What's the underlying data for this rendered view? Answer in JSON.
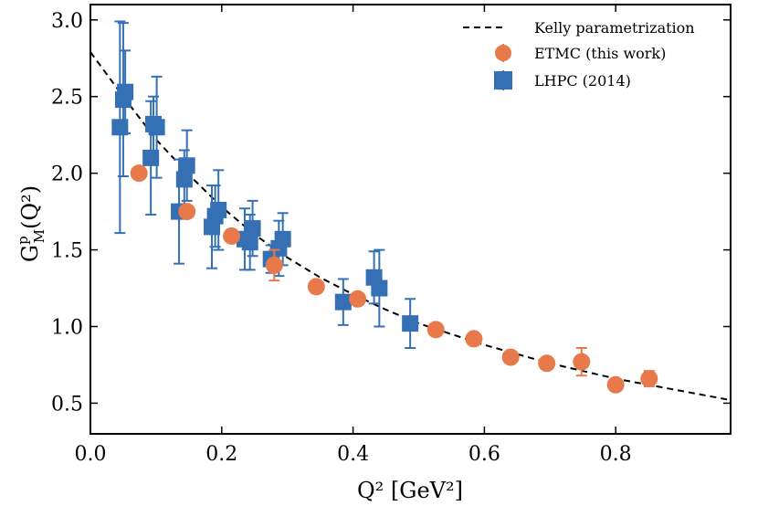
{
  "chart_data": {
    "type": "scatter",
    "title": "",
    "xlabel": "Q² [GeV²]",
    "ylabel": "G",
    "ylabel_sup": "p",
    "ylabel_sub": "M",
    "ylabel_rest": "(Q²)",
    "xlim": [
      0.0,
      0.975
    ],
    "ylim": [
      0.3,
      3.1
    ],
    "xticks": [
      0.0,
      0.2,
      0.4,
      0.6,
      0.8
    ],
    "xtick_labels": [
      "0.0",
      "0.2",
      "0.4",
      "0.6",
      "0.8"
    ],
    "yticks": [
      0.5,
      1.0,
      1.5,
      2.0,
      2.5,
      3.0
    ],
    "ytick_labels": [
      "0.5",
      "1.0",
      "1.5",
      "2.0",
      "2.5",
      "3.0"
    ],
    "legend_position": "top-right",
    "grid": false,
    "series": [
      {
        "name": "Kelly parametrization",
        "kind": "line",
        "style": "dashed",
        "color": "#000000",
        "points": [
          [
            0.0,
            2.79
          ],
          [
            0.05,
            2.5
          ],
          [
            0.1,
            2.22
          ],
          [
            0.15,
            1.99
          ],
          [
            0.2,
            1.78
          ],
          [
            0.25,
            1.6
          ],
          [
            0.3,
            1.45
          ],
          [
            0.35,
            1.32
          ],
          [
            0.4,
            1.21
          ],
          [
            0.45,
            1.11
          ],
          [
            0.5,
            1.02
          ],
          [
            0.55,
            0.95
          ],
          [
            0.6,
            0.88
          ],
          [
            0.65,
            0.82
          ],
          [
            0.7,
            0.76
          ],
          [
            0.75,
            0.71
          ],
          [
            0.8,
            0.66
          ],
          [
            0.85,
            0.62
          ],
          [
            0.9,
            0.58
          ],
          [
            0.95,
            0.54
          ],
          [
            0.975,
            0.52
          ]
        ]
      },
      {
        "name": "ETMC (this work)",
        "kind": "points",
        "marker": "circle",
        "color": "#E8794A",
        "points": [
          {
            "x": 0.074,
            "y": 2.0,
            "err": 0.03
          },
          {
            "x": 0.147,
            "y": 1.75,
            "err": 0.03
          },
          {
            "x": 0.215,
            "y": 1.59,
            "err": 0.03
          },
          {
            "x": 0.28,
            "y": 1.4,
            "err": 0.1
          },
          {
            "x": 0.344,
            "y": 1.26,
            "err": 0.02
          },
          {
            "x": 0.407,
            "y": 1.18,
            "err": 0.03
          },
          {
            "x": 0.526,
            "y": 0.98,
            "err": 0.02
          },
          {
            "x": 0.584,
            "y": 0.92,
            "err": 0.02
          },
          {
            "x": 0.64,
            "y": 0.8,
            "err": 0.02
          },
          {
            "x": 0.695,
            "y": 0.76,
            "err": 0.02
          },
          {
            "x": 0.748,
            "y": 0.77,
            "err": 0.09
          },
          {
            "x": 0.8,
            "y": 0.62,
            "err": 0.03
          },
          {
            "x": 0.851,
            "y": 0.66,
            "err": 0.05
          }
        ]
      },
      {
        "name": "LHPC (2014)",
        "kind": "points",
        "marker": "square",
        "color": "#3570B5",
        "points": [
          {
            "x": 0.045,
            "y": 2.3,
            "err": 0.69
          },
          {
            "x": 0.05,
            "y": 2.48,
            "err": 0.5
          },
          {
            "x": 0.053,
            "y": 2.53,
            "err": 0.27
          },
          {
            "x": 0.092,
            "y": 2.1,
            "err": 0.37
          },
          {
            "x": 0.096,
            "y": 2.32,
            "err": 0.18
          },
          {
            "x": 0.101,
            "y": 2.3,
            "err": 0.33
          },
          {
            "x": 0.135,
            "y": 1.75,
            "err": 0.34
          },
          {
            "x": 0.143,
            "y": 1.96,
            "err": 0.19
          },
          {
            "x": 0.147,
            "y": 2.05,
            "err": 0.23
          },
          {
            "x": 0.185,
            "y": 1.65,
            "err": 0.27
          },
          {
            "x": 0.19,
            "y": 1.72,
            "err": 0.2
          },
          {
            "x": 0.195,
            "y": 1.76,
            "err": 0.26
          },
          {
            "x": 0.235,
            "y": 1.57,
            "err": 0.2
          },
          {
            "x": 0.243,
            "y": 1.55,
            "err": 0.18
          },
          {
            "x": 0.247,
            "y": 1.64,
            "err": 0.18
          },
          {
            "x": 0.275,
            "y": 1.44,
            "err": 0.09
          },
          {
            "x": 0.287,
            "y": 1.51,
            "err": 0.18
          },
          {
            "x": 0.293,
            "y": 1.57,
            "err": 0.17
          },
          {
            "x": 0.385,
            "y": 1.16,
            "err": 0.15
          },
          {
            "x": 0.432,
            "y": 1.32,
            "err": 0.17
          },
          {
            "x": 0.44,
            "y": 1.25,
            "err": 0.25
          },
          {
            "x": 0.487,
            "y": 1.02,
            "err": 0.16
          }
        ]
      }
    ]
  }
}
